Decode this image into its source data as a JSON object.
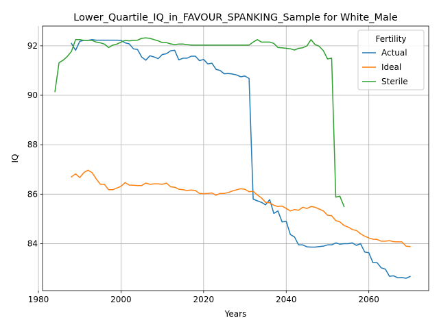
{
  "chart_data": {
    "type": "line",
    "title": "Lower_Quartile_IQ_in_FAVOUR_SPANKING_Sample for White_Male",
    "xlabel": "Years",
    "ylabel": "IQ",
    "xlim": [
      1981,
      2074.5
    ],
    "ylim": [
      82.1,
      92.8
    ],
    "xticks": [
      1980,
      2000,
      2020,
      2040,
      2060
    ],
    "xtick_labels": [
      "1980",
      "2000",
      "2020",
      "2040",
      "2060"
    ],
    "yticks": [
      84,
      86,
      88,
      90,
      92
    ],
    "ytick_labels": [
      "84",
      "86",
      "88",
      "90",
      "92"
    ],
    "grid": true,
    "legend": {
      "title": "Fertility",
      "position": "top-right"
    },
    "series": [
      {
        "name": "Actual",
        "color": "#1f77b4",
        "x": [
          1988,
          1989,
          1990,
          1991,
          1992,
          1993,
          1994,
          1995,
          1996,
          1997,
          1998,
          1999,
          2000,
          2001,
          2002,
          2003,
          2004,
          2005,
          2006,
          2007,
          2008,
          2009,
          2010,
          2011,
          2012,
          2013,
          2014,
          2015,
          2016,
          2017,
          2018,
          2019,
          2020,
          2021,
          2022,
          2023,
          2024,
          2025,
          2026,
          2027,
          2028,
          2029,
          2030,
          2031,
          2032,
          2033,
          2034,
          2035,
          2036,
          2037,
          2038,
          2039,
          2040,
          2041,
          2042,
          2043,
          2044,
          2045,
          2046,
          2047,
          2048,
          2049,
          2050,
          2051,
          2052,
          2053,
          2054,
          2055,
          2056,
          2057,
          2058,
          2059,
          2060,
          2061,
          2062,
          2063,
          2064,
          2065,
          2066,
          2067,
          2068,
          2069,
          2070
        ],
        "values": [
          92.1,
          91.82,
          92.18,
          92.22,
          92.22,
          92.25,
          92.23,
          92.23,
          92.23,
          92.23,
          92.23,
          92.23,
          92.22,
          92.12,
          92.08,
          91.88,
          91.85,
          91.55,
          91.42,
          91.6,
          91.55,
          91.48,
          91.65,
          91.68,
          91.8,
          91.82,
          91.43,
          91.5,
          91.5,
          91.58,
          91.58,
          91.4,
          91.45,
          91.27,
          91.3,
          91.05,
          91.0,
          90.87,
          90.88,
          90.86,
          90.82,
          90.75,
          90.78,
          90.68,
          85.8,
          85.73,
          85.67,
          85.57,
          85.78,
          85.22,
          85.32,
          84.88,
          84.9,
          84.37,
          84.27,
          83.95,
          83.95,
          83.87,
          83.86,
          83.86,
          83.88,
          83.9,
          83.95,
          83.95,
          84.03,
          83.98,
          84.0,
          84.0,
          84.03,
          83.93,
          84.0,
          83.66,
          83.63,
          83.23,
          83.23,
          83.02,
          82.97,
          82.68,
          82.7,
          82.62,
          82.63,
          82.6,
          82.67
        ]
      },
      {
        "name": "Ideal",
        "color": "#ff7f0e",
        "x": [
          1988,
          1989,
          1990,
          1991,
          1992,
          1993,
          1994,
          1995,
          1996,
          1997,
          1998,
          1999,
          2000,
          2001,
          2002,
          2003,
          2004,
          2005,
          2006,
          2007,
          2008,
          2009,
          2010,
          2011,
          2012,
          2013,
          2014,
          2015,
          2016,
          2017,
          2018,
          2019,
          2020,
          2021,
          2022,
          2023,
          2024,
          2025,
          2026,
          2027,
          2028,
          2029,
          2030,
          2031,
          2032,
          2033,
          2034,
          2035,
          2036,
          2037,
          2038,
          2039,
          2040,
          2041,
          2042,
          2043,
          2044,
          2045,
          2046,
          2047,
          2048,
          2049,
          2050,
          2051,
          2052,
          2053,
          2054,
          2055,
          2056,
          2057,
          2058,
          2059,
          2060,
          2061,
          2062,
          2063,
          2064,
          2065,
          2066,
          2067,
          2068,
          2069,
          2070
        ],
        "values": [
          86.7,
          86.82,
          86.67,
          86.87,
          86.97,
          86.87,
          86.62,
          86.4,
          86.4,
          86.18,
          86.18,
          86.25,
          86.32,
          86.47,
          86.37,
          86.36,
          86.35,
          86.35,
          86.45,
          86.4,
          86.42,
          86.42,
          86.4,
          86.45,
          86.3,
          86.28,
          86.2,
          86.18,
          86.15,
          86.17,
          86.15,
          86.03,
          86.02,
          86.03,
          86.05,
          85.96,
          86.03,
          86.03,
          86.07,
          86.13,
          86.18,
          86.22,
          86.2,
          86.1,
          86.12,
          85.97,
          85.85,
          85.67,
          85.65,
          85.55,
          85.5,
          85.52,
          85.42,
          85.32,
          85.38,
          85.35,
          85.47,
          85.42,
          85.5,
          85.47,
          85.4,
          85.32,
          85.15,
          85.13,
          84.93,
          84.88,
          84.73,
          84.67,
          84.57,
          84.53,
          84.4,
          84.3,
          84.23,
          84.18,
          84.17,
          84.1,
          84.1,
          84.12,
          84.08,
          84.07,
          84.07,
          83.9,
          83.88
        ]
      },
      {
        "name": "Sterile",
        "color": "#2ca02c",
        "x": [
          1984,
          1985,
          1986,
          1987,
          1988,
          1989,
          1990,
          1991,
          1992,
          1993,
          1994,
          1995,
          1996,
          1997,
          1998,
          1999,
          2000,
          2001,
          2002,
          2003,
          2004,
          2005,
          2006,
          2007,
          2008,
          2009,
          2010,
          2011,
          2012,
          2013,
          2014,
          2015,
          2016,
          2017,
          2018,
          2019,
          2020,
          2021,
          2022,
          2023,
          2024,
          2025,
          2026,
          2027,
          2028,
          2029,
          2030,
          2031,
          2032,
          2033,
          2034,
          2035,
          2036,
          2037,
          2038,
          2039,
          2040,
          2041,
          2042,
          2043,
          2044,
          2045,
          2046,
          2047,
          2048,
          2049,
          2050,
          2051,
          2052,
          2053,
          2054
        ],
        "values": [
          90.15,
          91.32,
          91.42,
          91.57,
          91.77,
          92.25,
          92.25,
          92.22,
          92.22,
          92.22,
          92.15,
          92.12,
          92.07,
          91.93,
          92.03,
          92.07,
          92.15,
          92.22,
          92.2,
          92.22,
          92.23,
          92.3,
          92.32,
          92.3,
          92.25,
          92.2,
          92.13,
          92.13,
          92.08,
          92.05,
          92.07,
          92.07,
          92.05,
          92.03,
          92.03,
          92.03,
          92.03,
          92.03,
          92.03,
          92.03,
          92.03,
          92.03,
          92.03,
          92.03,
          92.03,
          92.03,
          92.03,
          92.03,
          92.15,
          92.25,
          92.15,
          92.15,
          92.15,
          92.1,
          91.93,
          91.92,
          91.9,
          91.88,
          91.83,
          91.9,
          91.92,
          92.0,
          92.25,
          92.05,
          91.98,
          91.8,
          91.47,
          91.5,
          85.88,
          85.92,
          85.5
        ]
      }
    ]
  }
}
